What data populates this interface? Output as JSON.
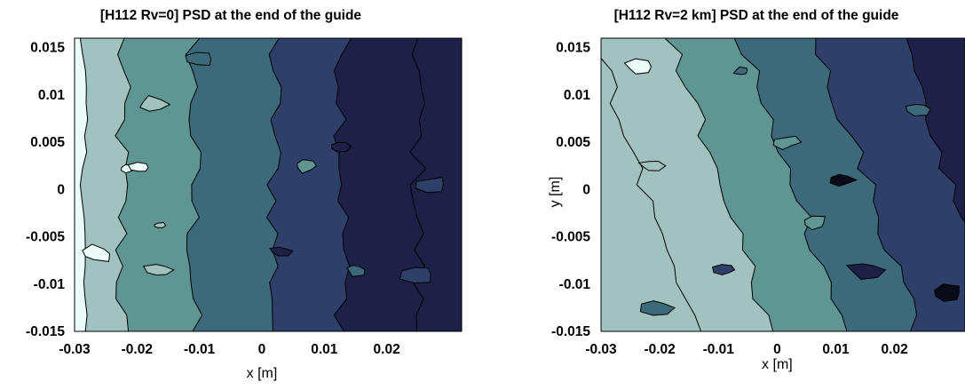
{
  "colors": {
    "level_0": "#eafbfa",
    "level_1": "#a2c2bf",
    "level_2": "#5f9694",
    "level_3": "#3c6a7a",
    "level_4": "#2e3f6a",
    "level_5": "#1d2147",
    "level_6": "#090b18",
    "contour_line": "#000000"
  },
  "chart_data": [
    {
      "type": "contour",
      "title": "[H112 Rv=0] PSD at the end of the guide",
      "xlabel": "x [m]",
      "ylabel": "",
      "xlim": [
        -0.03,
        0.032
      ],
      "ylim": [
        -0.015,
        0.016
      ],
      "xticks": [
        -0.03,
        -0.02,
        -0.01,
        0,
        0.01,
        0.02
      ],
      "xtick_labels": [
        "-0.03",
        "-0.02",
        "-0.01",
        "0",
        "0.01",
        "0.02"
      ],
      "yticks": [
        0.015,
        0.01,
        0.005,
        0,
        -0.005,
        -0.01,
        -0.015
      ],
      "ytick_labels": [
        "0.015",
        "0.01",
        "0.005",
        "0",
        "-0.005",
        "-0.01",
        "-0.015"
      ],
      "grid": false,
      "levels": 7,
      "field": {
        "x_edges": [
          -0.03,
          -0.0225,
          -0.011,
          0.002,
          0.013,
          0.032
        ],
        "band_levels": [
          1,
          2,
          3,
          4,
          5
        ],
        "edge_wobble": 0.0015,
        "islands": [
          {
            "x": -0.0215,
            "y": 0.0022,
            "level": 0
          },
          {
            "x": -0.0195,
            "y": 0.0023,
            "level": 0
          },
          {
            "x": -0.0175,
            "y": 0.009,
            "level": 1
          },
          {
            "x": -0.0165,
            "y": -0.0038,
            "level": 1
          },
          {
            "x": -0.0165,
            "y": -0.0085,
            "level": 1
          },
          {
            "x": -0.0265,
            "y": -0.0068,
            "level": 0
          },
          {
            "x": -0.01,
            "y": 0.0138,
            "level": 3
          },
          {
            "x": 0.007,
            "y": 0.0025,
            "level": 2
          },
          {
            "x": 0.0125,
            "y": 0.0045,
            "level": 5
          },
          {
            "x": 0.003,
            "y": -0.0065,
            "level": 5
          },
          {
            "x": 0.015,
            "y": -0.0085,
            "level": 3
          },
          {
            "x": 0.025,
            "y": -0.009,
            "level": 4
          },
          {
            "x": 0.027,
            "y": 0.0005,
            "level": 4
          }
        ]
      }
    },
    {
      "type": "contour",
      "title": "[H112 Rv=2 km] PSD at the end of the guide",
      "xlabel": "x [m]",
      "ylabel": "y [m]",
      "xlim": [
        -0.03,
        0.032
      ],
      "ylim": [
        -0.015,
        0.016
      ],
      "xticks": [
        -0.03,
        -0.02,
        -0.01,
        0,
        0.01,
        0.02
      ],
      "xtick_labels": [
        "-0.03",
        "-0.02",
        "-0.01",
        "0",
        "0.01",
        "0.02"
      ],
      "yticks": [
        0.015,
        0.01,
        0.005,
        0,
        -0.005,
        -0.01,
        -0.015
      ],
      "ytick_labels": [
        "0.015",
        "0.01",
        "0.005",
        "0",
        "-0.005",
        "-0.01",
        "-0.015"
      ],
      "grid": false,
      "levels": 7,
      "field": {
        "diagonal_edges": [
          -0.031,
          -0.018,
          -0.006,
          0.007,
          0.021
        ],
        "band_levels": [
          1,
          2,
          3,
          4,
          5
        ],
        "edge_wobble": 0.0015,
        "islands": [
          {
            "x": -0.0235,
            "y": 0.013,
            "level": 0
          },
          {
            "x": -0.0215,
            "y": 0.0025,
            "level": 1
          },
          {
            "x": 0.0065,
            "y": -0.0035,
            "level": 2
          },
          {
            "x": -0.006,
            "y": 0.0125,
            "level": 3
          },
          {
            "x": 0.0015,
            "y": 0.005,
            "level": 2
          },
          {
            "x": 0.024,
            "y": 0.0085,
            "level": 3
          },
          {
            "x": 0.011,
            "y": 0.001,
            "level": 6
          },
          {
            "x": 0.015,
            "y": -0.0085,
            "level": 5
          },
          {
            "x": 0.029,
            "y": -0.011,
            "level": 6
          },
          {
            "x": -0.0205,
            "y": -0.0125,
            "level": 3
          },
          {
            "x": -0.009,
            "y": -0.0085,
            "level": 4
          }
        ]
      }
    }
  ]
}
